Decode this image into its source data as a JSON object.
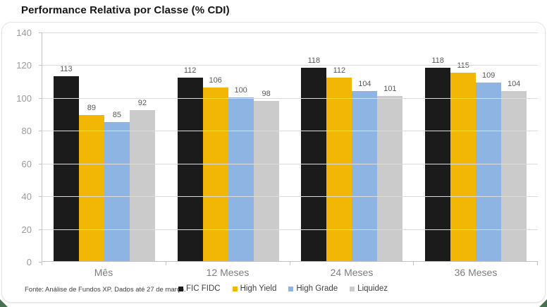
{
  "header": {
    "title": "Performance Relativa por Classe (% CDI)"
  },
  "footer": {
    "source": "Fonte: Análise de Fundos XP. Dados até 27 de março."
  },
  "colors": {
    "accent_green": "#4a7052",
    "bar_black": "#1b1b1b",
    "bar_yellow": "#f2b705",
    "bar_blue": "#8db4e2",
    "bar_gray": "#cbcbcb",
    "gridline": "#dcdcdc",
    "axis": "#c3c3c3"
  },
  "chart_data": {
    "type": "bar",
    "title": "Performance Relativa por Classe (% CDI)",
    "categories": [
      "Mês",
      "12 Meses",
      "24 Meses",
      "36 Meses"
    ],
    "series": [
      {
        "name": "FIC FIDC",
        "color": "#1b1b1b",
        "values": [
          113,
          112,
          118,
          118
        ]
      },
      {
        "name": "High Yield",
        "color": "#f2b705",
        "values": [
          89,
          106,
          112,
          115
        ]
      },
      {
        "name": "High Grade",
        "color": "#8db4e2",
        "values": [
          85,
          100,
          104,
          109
        ]
      },
      {
        "name": "Liquidez",
        "color": "#cbcbcb",
        "values": [
          92,
          98,
          101,
          104
        ]
      }
    ],
    "xlabel": "",
    "ylabel": "",
    "ylim": [
      0,
      140
    ],
    "ytick_step": 20,
    "grid": true,
    "legend_position": "bottom",
    "value_labels": true
  }
}
